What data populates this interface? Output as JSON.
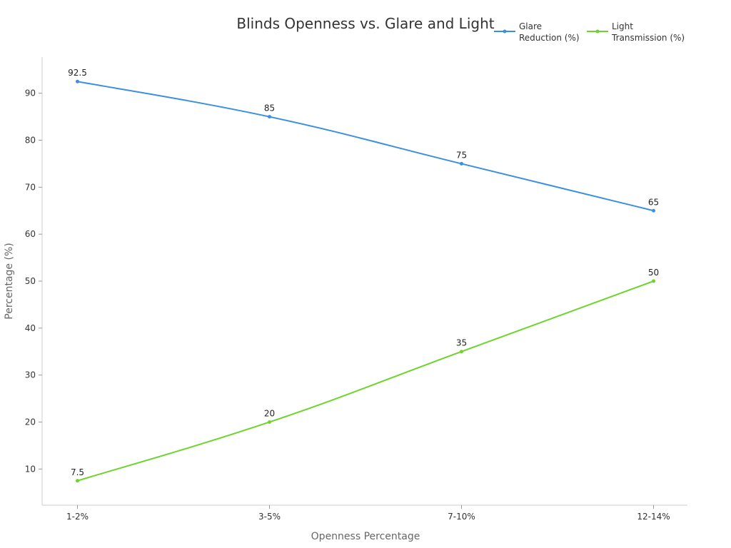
{
  "chart_data": {
    "type": "line",
    "title": "Blinds Openness vs. Glare and Light",
    "xlabel": "Openness Percentage",
    "ylabel": "Percentage (%)",
    "categories": [
      "1-2%",
      "3-5%",
      "7-10%",
      "12-14%"
    ],
    "y_ticks": [
      10,
      20,
      30,
      40,
      50,
      60,
      70,
      80,
      90
    ],
    "ylim": [
      2.3,
      97.7
    ],
    "grid": false,
    "legend_position": "top-right",
    "series": [
      {
        "name": "Glare Reduction (%)",
        "legend_lines": [
          "Glare",
          "Reduction (%)"
        ],
        "color": "#3b8fe0",
        "values": [
          92.5,
          85,
          75,
          65
        ]
      },
      {
        "name": "Light Transmission (%)",
        "legend_lines": [
          "Light",
          "Transmission (%)"
        ],
        "color": "#6dd42e",
        "values": [
          7.5,
          20,
          35,
          50
        ]
      }
    ]
  }
}
